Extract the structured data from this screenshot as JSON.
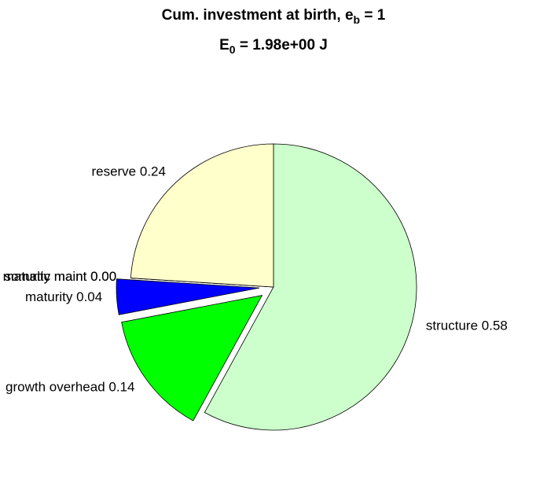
{
  "chart_data": {
    "type": "pie",
    "title": {
      "text": "Cum. investment at birth, e",
      "sub": "b",
      "tail": " = 1"
    },
    "subtitle": {
      "text": "E",
      "sub": "0",
      "tail": " = 1.98e+00 J"
    },
    "values": [
      0.58,
      0.14,
      0.04,
      0.0,
      0.0,
      0.24
    ],
    "value_labels": [
      "structure 0.58",
      "growth overhead 0.14",
      "maturity 0.04",
      "somatic maint 0.00",
      "maturity maint 0.00",
      "reserve 0.24"
    ],
    "colors": [
      "#ccffcc",
      "#00ff00",
      "#0000ff",
      "#ff0000",
      "#7a1f1f",
      "#ffffcc"
    ],
    "explode": [
      false,
      true,
      true,
      false,
      false,
      false
    ]
  }
}
